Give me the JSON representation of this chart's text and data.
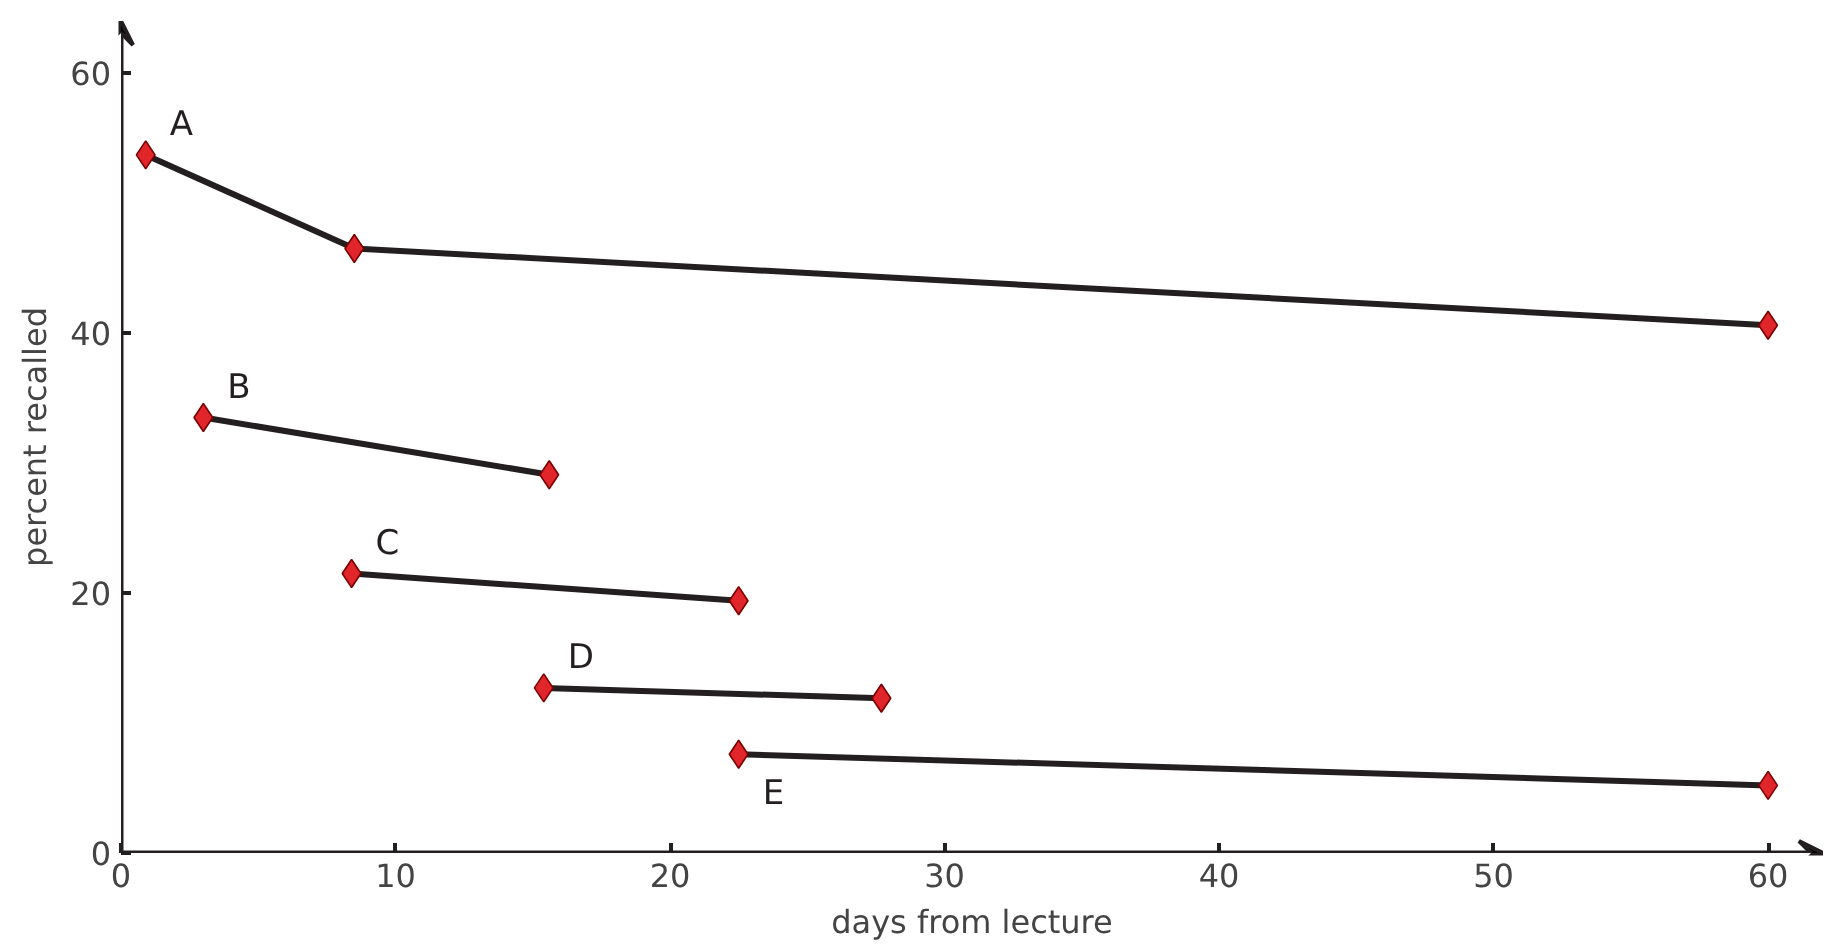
{
  "chart_data": {
    "type": "line",
    "xlabel": "days from lecture",
    "ylabel": "percent recalled",
    "xlim": [
      0,
      62
    ],
    "ylim": [
      0,
      64
    ],
    "xticks": [
      0,
      10,
      20,
      30,
      40,
      50,
      60
    ],
    "yticks": [
      0,
      20,
      40,
      60
    ],
    "grid": false,
    "marker": "diamond",
    "line_style": "solid",
    "series": [
      {
        "name": "A",
        "color": "#231f20",
        "x": [
          0.9,
          8.5,
          60
        ],
        "values": [
          53.7,
          46.5,
          40.6
        ]
      },
      {
        "name": "B",
        "color": "#231f20",
        "x": [
          3,
          15.6
        ],
        "values": [
          33.5,
          29.1
        ]
      },
      {
        "name": "C",
        "color": "#231f20",
        "x": [
          8.4,
          22.5
        ],
        "values": [
          21.5,
          19.4
        ]
      },
      {
        "name": "D",
        "color": "#231f20",
        "x": [
          15.4,
          27.7
        ],
        "values": [
          12.7,
          11.9
        ]
      },
      {
        "name": "E",
        "color": "#231f20",
        "x": [
          22.5,
          60
        ],
        "values": [
          7.6,
          5.2
        ]
      }
    ]
  }
}
